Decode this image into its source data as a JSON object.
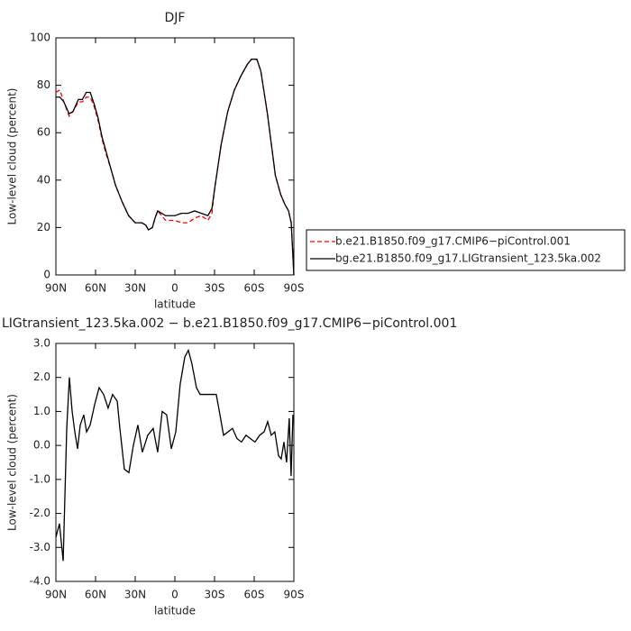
{
  "chart_data": [
    {
      "type": "line",
      "title": "DJF",
      "xlabel": "latitude",
      "ylabel": "Low-level cloud (percent)",
      "x": [
        90,
        87,
        84,
        80,
        77,
        73,
        70,
        67,
        64,
        61,
        58,
        55,
        52,
        48,
        45,
        40,
        35,
        30,
        25,
        22,
        20,
        17,
        15,
        13,
        10,
        7,
        5,
        0,
        -5,
        -10,
        -15,
        -20,
        -25,
        -28,
        -30,
        -35,
        -40,
        -45,
        -50,
        -55,
        -58,
        -62,
        -65,
        -70,
        -73,
        -76,
        -80,
        -83,
        -86,
        -88,
        -90
      ],
      "series": [
        {
          "name": "b.e21.B1850.f09_g17.CMIP6−piControl.001",
          "color": "#ff0000",
          "line_style": "dashed",
          "values": [
            77,
            78,
            73,
            67,
            69,
            73,
            73,
            75,
            75,
            71,
            65,
            57,
            51,
            44,
            38,
            31,
            25,
            22,
            22,
            21,
            19,
            20,
            24,
            27,
            25,
            23,
            23,
            23,
            22,
            22,
            24,
            25,
            23,
            26,
            36,
            55,
            69,
            78,
            84,
            89,
            91,
            91,
            86,
            68,
            55,
            42,
            34,
            30,
            27,
            22,
            0
          ]
        },
        {
          "name": "bg.e21.B1850.f09_g17.LIGtransient_123.5ka.002",
          "color": "#000000",
          "line_style": "solid",
          "values": [
            75,
            75,
            73,
            68,
            69,
            74,
            74,
            77,
            77,
            72,
            66,
            58,
            52,
            44,
            38,
            31,
            25,
            22,
            22,
            21,
            19,
            20,
            24,
            27,
            26,
            25,
            25,
            25,
            26,
            26,
            27,
            26,
            25,
            28,
            36,
            55,
            69,
            78,
            84,
            89,
            91,
            91,
            86,
            68,
            55,
            42,
            34,
            30,
            27,
            22,
            0
          ]
        }
      ],
      "xlim": [
        90,
        -90
      ],
      "xticks": [
        {
          "value": 90,
          "label": "90N"
        },
        {
          "value": 60,
          "label": "60N"
        },
        {
          "value": 30,
          "label": "30N"
        },
        0,
        {
          "value": -30,
          "label": "30S"
        },
        {
          "value": -60,
          "label": "60S"
        },
        {
          "value": -90,
          "label": "90S"
        }
      ],
      "ylim": [
        0,
        100
      ],
      "yticks": [
        0,
        20,
        40,
        60,
        80,
        100
      ],
      "legend": "outside-right"
    },
    {
      "type": "line",
      "title": "LIGtransient_123.5ka.002 − b.e21.B1850.f09_g17.CMIP6−piControl.001",
      "xlabel": "latitude",
      "ylabel": "Low-level cloud (percent)",
      "x": [
        90,
        87.3,
        84.5,
        81.8,
        79.8,
        77.7,
        75.7,
        73.6,
        71.6,
        68.9,
        66.8,
        64.1,
        60.7,
        57.3,
        53.9,
        50.5,
        47.1,
        43.6,
        41.6,
        38.2,
        34.8,
        31.4,
        28,
        24.6,
        20.5,
        16.4,
        13,
        9.6,
        6.2,
        2.7,
        -0.7,
        -4,
        -7.5,
        -10.2,
        -12.9,
        -16.3,
        -19.1,
        -23.2,
        -26.6,
        -31.3,
        -34.1,
        -36.8,
        -40.2,
        -43.6,
        -47,
        -50.4,
        -53.8,
        -57.2,
        -60.6,
        -64.1,
        -67.5,
        -70.2,
        -72.9,
        -75.6,
        -78.4,
        -80.4,
        -82.5,
        -84.5,
        -86.5,
        -87.9,
        -89.3
      ],
      "values": [
        -2.7,
        -2.3,
        -3.4,
        0.5,
        2.0,
        1.0,
        0.4,
        -0.1,
        0.6,
        0.9,
        0.4,
        0.6,
        1.2,
        1.7,
        1.5,
        1.1,
        1.5,
        1.3,
        0.5,
        -0.7,
        -0.8,
        0.0,
        0.6,
        -0.2,
        0.3,
        0.5,
        -0.2,
        1.0,
        0.9,
        -0.1,
        0.4,
        1.8,
        2.6,
        2.8,
        2.4,
        1.7,
        1.5,
        1.5,
        1.5,
        1.5,
        0.9,
        0.3,
        0.4,
        0.5,
        0.2,
        0.1,
        0.3,
        0.2,
        0.1,
        0.3,
        0.4,
        0.7,
        0.3,
        0.4,
        -0.3,
        -0.4,
        0.1,
        -0.5,
        0.8,
        -0.9,
        0.9
      ],
      "color": "#000000",
      "xlim": [
        90,
        -90
      ],
      "xticks": [
        {
          "value": 90,
          "label": "90N"
        },
        {
          "value": 60,
          "label": "60N"
        },
        {
          "value": 30,
          "label": "30N"
        },
        0,
        {
          "value": -30,
          "label": "30S"
        },
        {
          "value": -60,
          "label": "60S"
        },
        {
          "value": -90,
          "label": "90S"
        }
      ],
      "ylim": [
        -4,
        3
      ],
      "yticks": [
        {
          "value": -4,
          "label": "-4.0"
        },
        {
          "value": -3,
          "label": "-3.0"
        },
        {
          "value": -2,
          "label": "-2.0"
        },
        {
          "value": -1,
          "label": "-1.0"
        },
        {
          "value": 0,
          "label": "0.0"
        },
        {
          "value": 1,
          "label": "1.0"
        },
        {
          "value": 2,
          "label": "2.0"
        },
        {
          "value": 3,
          "label": "3.0"
        }
      ]
    }
  ]
}
